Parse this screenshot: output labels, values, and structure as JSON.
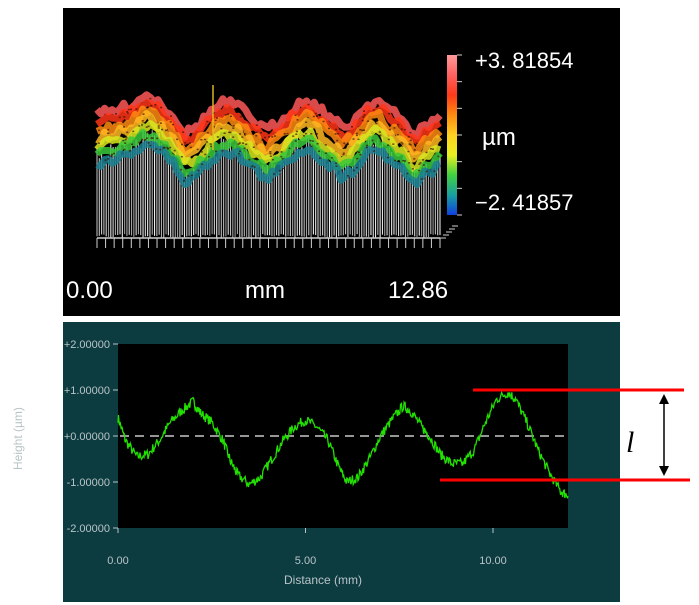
{
  "chart_data": [
    {
      "type": "surface",
      "xlabel": "mm",
      "x_range": [
        0.0,
        12.86
      ],
      "x_tick_labels": [
        "0.00",
        "12.86"
      ],
      "colorbar": {
        "max_label": "+3. 81854",
        "min_label": "−2. 41857",
        "unit": "µm",
        "colors": [
          "#ff9a9a",
          "#ff6060",
          "#ff3a1a",
          "#ff8a10",
          "#ffd020",
          "#e8f020",
          "#40d040",
          "#18a0a0",
          "#1040e0"
        ]
      },
      "surface_colors": [
        "#ff5858",
        "#ff3418",
        "#ff8a10",
        "#ffb820",
        "#d8e820",
        "#38c838",
        "#1a8090"
      ],
      "profile": [
        [
          0.0,
          0.2
        ],
        [
          0.5,
          0.35
        ],
        [
          1.0,
          0.55
        ],
        [
          1.5,
          0.95
        ],
        [
          1.9,
          1.35
        ],
        [
          2.4,
          0.8
        ],
        [
          2.9,
          0.1
        ],
        [
          3.3,
          -0.9
        ],
        [
          3.8,
          -0.4
        ],
        [
          4.3,
          0.4
        ],
        [
          4.8,
          0.9
        ],
        [
          5.3,
          0.6
        ],
        [
          5.8,
          0.0
        ],
        [
          6.3,
          -0.7
        ],
        [
          6.8,
          -0.3
        ],
        [
          7.3,
          0.5
        ],
        [
          7.8,
          1.0
        ],
        [
          8.2,
          0.7
        ],
        [
          8.7,
          0.1
        ],
        [
          9.2,
          -0.6
        ],
        [
          9.6,
          -0.2
        ],
        [
          10.0,
          0.6
        ],
        [
          10.5,
          1.05
        ],
        [
          10.9,
          0.5
        ],
        [
          11.4,
          -0.1
        ],
        [
          11.9,
          -0.9
        ],
        [
          12.4,
          -0.4
        ],
        [
          12.86,
          0.1
        ]
      ]
    },
    {
      "type": "line",
      "xlabel": "Distance (mm)",
      "ylabel": "Height (µm)",
      "xlim": [
        0,
        12
      ],
      "ylim": [
        -2,
        2
      ],
      "x_ticks": [
        0,
        5,
        10
      ],
      "x_tick_labels": [
        "0.00",
        "5.00",
        "10.00"
      ],
      "y_ticks": [
        2,
        1,
        0,
        -1,
        -2
      ],
      "y_tick_labels": [
        "+2.00000",
        "+1.00000",
        "+0.00000",
        "-1.00000",
        "-2.00000"
      ],
      "zero_line": "dashed",
      "series_color": "#22e000",
      "points": [
        [
          0.0,
          0.4
        ],
        [
          0.2,
          -0.1
        ],
        [
          0.5,
          -0.45
        ],
        [
          0.8,
          -0.4
        ],
        [
          1.1,
          -0.1
        ],
        [
          1.4,
          0.3
        ],
        [
          1.7,
          0.55
        ],
        [
          2.0,
          0.75
        ],
        [
          2.2,
          0.5
        ],
        [
          2.5,
          0.3
        ],
        [
          2.8,
          -0.1
        ],
        [
          3.0,
          -0.55
        ],
        [
          3.2,
          -0.85
        ],
        [
          3.5,
          -1.05
        ],
        [
          3.8,
          -0.9
        ],
        [
          4.1,
          -0.5
        ],
        [
          4.4,
          -0.1
        ],
        [
          4.7,
          0.2
        ],
        [
          5.0,
          0.35
        ],
        [
          5.3,
          0.2
        ],
        [
          5.6,
          -0.1
        ],
        [
          5.9,
          -0.7
        ],
        [
          6.1,
          -1.0
        ],
        [
          6.4,
          -0.9
        ],
        [
          6.7,
          -0.5
        ],
        [
          7.0,
          0.0
        ],
        [
          7.3,
          0.35
        ],
        [
          7.6,
          0.65
        ],
        [
          7.8,
          0.55
        ],
        [
          8.1,
          0.2
        ],
        [
          8.3,
          0.0
        ],
        [
          8.6,
          -0.4
        ],
        [
          8.9,
          -0.6
        ],
        [
          9.2,
          -0.6
        ],
        [
          9.5,
          -0.3
        ],
        [
          9.8,
          0.3
        ],
        [
          10.1,
          0.8
        ],
        [
          10.4,
          0.95
        ],
        [
          10.6,
          0.8
        ],
        [
          10.9,
          0.3
        ],
        [
          11.2,
          -0.3
        ],
        [
          11.5,
          -0.8
        ],
        [
          11.8,
          -1.2
        ],
        [
          12.0,
          -1.3
        ]
      ]
    }
  ],
  "annotation": {
    "symbol": "l",
    "line_color": "#ff0000"
  }
}
